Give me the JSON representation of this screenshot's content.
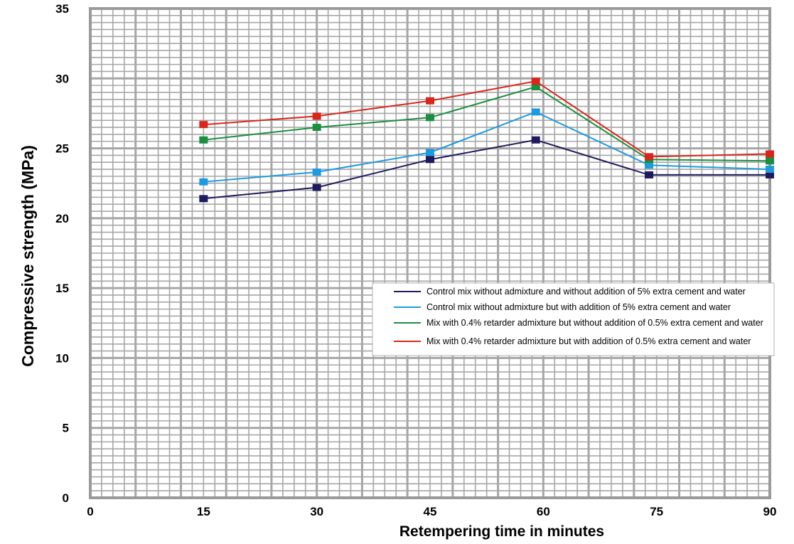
{
  "chart_data": {
    "type": "line",
    "xlabel": "Retempering time in minutes",
    "ylabel": "Compressive strength  (MPa)",
    "xlim": [
      0,
      90
    ],
    "ylim": [
      0,
      35
    ],
    "xticks": [
      0,
      15,
      30,
      45,
      60,
      75,
      90
    ],
    "yticks": [
      0,
      5,
      10,
      15,
      20,
      25,
      30,
      35
    ],
    "x": [
      15,
      30,
      45,
      59,
      74,
      90
    ],
    "grid": true,
    "legend_position": "lower-right",
    "series": [
      {
        "name": "Control mix without admixture and without addition of 5% extra cement and water",
        "color": "#1f1a5e",
        "values": [
          21.4,
          22.2,
          24.2,
          25.6,
          23.1,
          23.1
        ]
      },
      {
        "name": "Control mix without admixture but with addition of 5% extra cement and water",
        "color": "#1e9be0",
        "values": [
          22.6,
          23.3,
          24.7,
          27.6,
          23.8,
          23.5
        ]
      },
      {
        "name": "Mix with 0.4% retarder admixture but without addition of 0.5% extra cement and water",
        "color": "#1a8f3f",
        "values": [
          25.6,
          26.5,
          27.2,
          29.4,
          24.2,
          24.1
        ]
      },
      {
        "name": "Mix with 0.4% retarder admixture but with addition of 0.5% extra cement and water",
        "color": "#d9261c",
        "values": [
          26.7,
          27.3,
          28.4,
          29.8,
          24.4,
          24.6
        ]
      }
    ]
  }
}
